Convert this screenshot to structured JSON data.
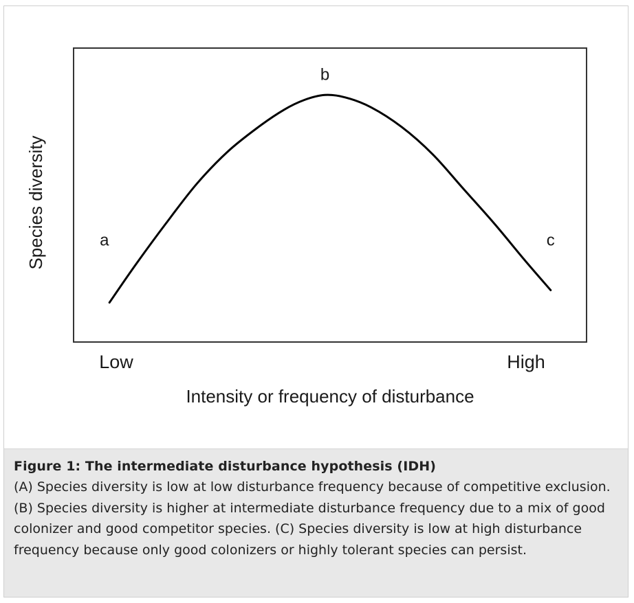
{
  "chart_data": {
    "type": "line",
    "ylabel": "Species diversity",
    "xlabel": "Intensity or frequency of disturbance",
    "x_tick_labels": [
      "Low",
      "High"
    ],
    "annotations": [
      {
        "label": "a",
        "x": 0.06,
        "y": 0.33
      },
      {
        "label": "b",
        "x": 0.49,
        "y": 1.0
      },
      {
        "label": "c",
        "x": 0.93,
        "y": 0.33
      }
    ],
    "series": [
      {
        "x": [
          0.07,
          0.12,
          0.18,
          0.24,
          0.3,
          0.36,
          0.41,
          0.45,
          0.49,
          0.53,
          0.58,
          0.64,
          0.7,
          0.76,
          0.82,
          0.88,
          0.93
        ],
        "y": [
          0.16,
          0.31,
          0.48,
          0.64,
          0.77,
          0.87,
          0.94,
          0.98,
          1.0,
          0.99,
          0.95,
          0.87,
          0.76,
          0.62,
          0.48,
          0.33,
          0.21
        ]
      }
    ],
    "xlim": [
      0,
      1
    ],
    "ylim": [
      0,
      1.19
    ],
    "grid": false,
    "line_color": "#000000"
  },
  "caption": {
    "title": "Figure 1: The intermediate disturbance hypothesis (IDH)",
    "text": "(A) Species diversity is low at low disturbance frequency because of competitive exclusion. (B) Species diversity is higher at intermediate disturbance frequency due to a mix of good colonizer and good competitor species. (C) Species diversity is low at high disturbance frequency because only good colonizers or highly tolerant species can persist."
  }
}
